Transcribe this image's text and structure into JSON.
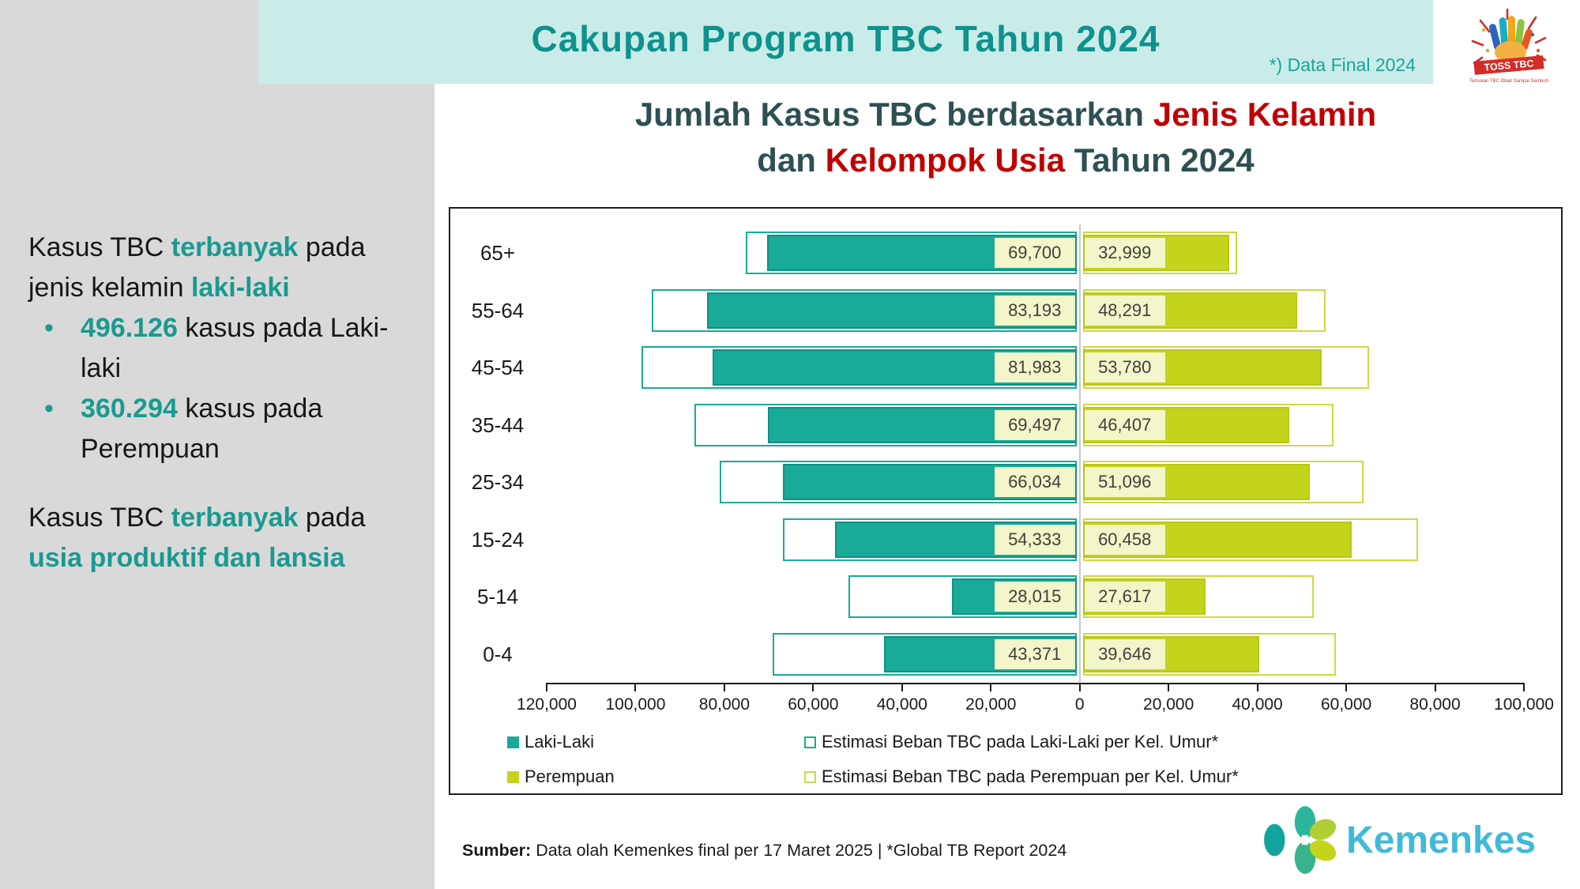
{
  "header": {
    "band_title": "Cakupan Program TBC Tahun 2024",
    "note": "*) Data Final 2024"
  },
  "logos": {
    "toss_banner": "TOSS TBC",
    "toss_tagline": "Temukan TBC Obati Sampai Sembuh",
    "kemenkes_label": "Kemenkes"
  },
  "sidebar": {
    "paragraph1": [
      {
        "t": "Kasus TBC ",
        "hl": false
      },
      {
        "t": "terbanyak",
        "hl": true
      },
      {
        "t": " pada jenis kelamin ",
        "hl": false
      },
      {
        "t": "laki-laki",
        "hl": true
      }
    ],
    "bullets": [
      [
        {
          "t": "496.126",
          "hl": true
        },
        {
          "t": " kasus pada Laki-laki",
          "hl": false
        }
      ],
      [
        {
          "t": "360.294",
          "hl": true
        },
        {
          "t": " kasus pada Perempuan",
          "hl": false
        }
      ]
    ],
    "paragraph2": [
      {
        "t": "Kasus TBC ",
        "hl": false
      },
      {
        "t": "terbanyak",
        "hl": true
      },
      {
        "t": " pada ",
        "hl": false
      },
      {
        "t": "usia produktif dan lansia",
        "hl": true
      }
    ]
  },
  "chart": {
    "title_lines": [
      [
        {
          "t": "Jumlah Kasus TBC berdasarkan ",
          "red": false
        },
        {
          "t": "Jenis Kelamin",
          "red": true
        }
      ],
      [
        {
          "t": "dan ",
          "red": false
        },
        {
          "t": "Kelompok Usia",
          "red": true
        },
        {
          "t": " Tahun 2024",
          "red": false
        }
      ]
    ]
  },
  "chart_data": {
    "type": "bar",
    "orientation": "horizontal-diverging",
    "title": "Jumlah Kasus TBC berdasarkan Jenis Kelamin dan Kelompok Usia Tahun 2024",
    "categories": [
      "65+",
      "55-64",
      "45-54",
      "35-44",
      "25-34",
      "15-24",
      "5-14",
      "0-4"
    ],
    "series": [
      {
        "name": "Laki-Laki",
        "side": "left",
        "values": [
          69700,
          83193,
          81983,
          69497,
          66034,
          54333,
          28015,
          43371
        ]
      },
      {
        "name": "Perempuan",
        "side": "right",
        "values": [
          32999,
          48291,
          53780,
          46407,
          51096,
          60458,
          27617,
          39646
        ]
      },
      {
        "name": "Estimasi Beban TBC pada Laki-Laki per Kel. Umur*",
        "side": "left",
        "values": [
          74500,
          95700,
          97900,
          86100,
          80400,
          66200,
          51400,
          68400
        ]
      },
      {
        "name": "Estimasi Beban TBC pada Perempuan per Kel. Umur*",
        "side": "right",
        "values": [
          34700,
          54600,
          64400,
          56400,
          63200,
          75500,
          52000,
          56900
        ]
      }
    ],
    "axis": {
      "min": -120000,
      "max": 100000,
      "tick_step": 20000,
      "tick_values": [
        -120000,
        -100000,
        -80000,
        -60000,
        -40000,
        -20000,
        0,
        20000,
        40000,
        60000,
        80000,
        100000
      ],
      "tick_labels": [
        "120,000",
        "100,000",
        "80,000",
        "60,000",
        "40,000",
        "20,000",
        "0",
        "20,000",
        "40,000",
        "60,000",
        "80,000",
        "100,000"
      ]
    },
    "legend": [
      {
        "label": "Laki-Laki",
        "swatch": "filled-teal"
      },
      {
        "label": "Estimasi Beban TBC pada Laki-Laki per Kel. Umur*",
        "swatch": "outlined-teal"
      },
      {
        "label": "Perempuan",
        "swatch": "filled-yellow"
      },
      {
        "label": "Estimasi Beban TBC pada Perempuan per Kel. Umur*",
        "swatch": "outlined-yellow"
      }
    ],
    "grid": false,
    "legend_position": "bottom"
  },
  "footer": {
    "sumber_label": "Sumber:",
    "sumber_text": " Data olah Kemenkes final per 17 Maret 2025 | *Global TB Report 2024"
  },
  "colors": {
    "male_fill": "#19AB98",
    "male_edge": "#0E9185",
    "male_outline": "#19AB98",
    "female_fill": "#C4D41D",
    "female_edge": "#B9C715",
    "female_outline": "#CFD944",
    "label_box": "#F3F6C8",
    "label_text": "#3F3F3F",
    "center_line": "#C9C9C9",
    "axis_color": "#1A1A1A",
    "accent_teal": "#1A9A90",
    "title_dark": "#2E5053",
    "title_red": "#C00000",
    "header_band": "#CAECE8",
    "header_teal": "#0F928D",
    "sidebar_bg": "#D9D9D9",
    "kemenkes_blue": "#41BAD8",
    "chart_border": "#1F1F1F"
  }
}
